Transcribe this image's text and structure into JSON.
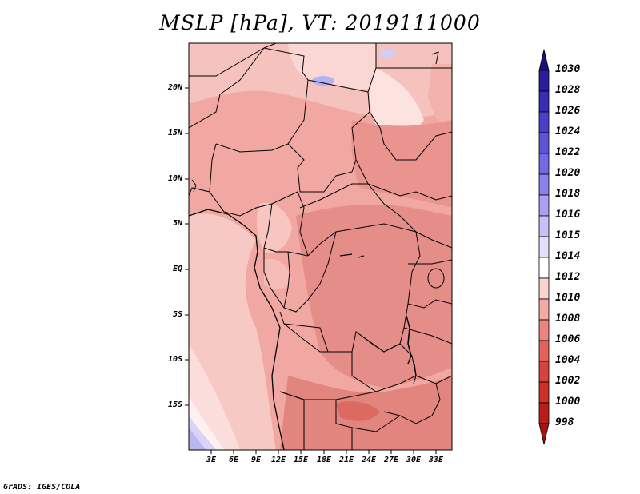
{
  "title": "MSLP [hPa], VT: 2019111000",
  "credit": "GrADS: IGES/COLA",
  "y_axis_labels": [
    "20N",
    "15N",
    "10N",
    "5N",
    "EQ",
    "5S",
    "10S",
    "15S"
  ],
  "x_axis_labels": [
    "3E",
    "6E",
    "9E",
    "12E",
    "15E",
    "18E",
    "21E",
    "24E",
    "27E",
    "30E",
    "33E"
  ],
  "colorbar": {
    "levels": [
      "1030",
      "1028",
      "1026",
      "1024",
      "1022",
      "1020",
      "1018",
      "1016",
      "1015",
      "1014",
      "1012",
      "1010",
      "1008",
      "1006",
      "1004",
      "1002",
      "1000",
      "998"
    ],
    "colors": [
      "#1a0f7a",
      "#2a1c9c",
      "#3a2cb4",
      "#4b3ec9",
      "#5e53d8",
      "#7468e3",
      "#8c81eb",
      "#a9a0f1",
      "#c6c0f6",
      "#e2defb",
      "#ffffff",
      "#fbd4d0",
      "#f4aaa4",
      "#ec8580",
      "#e2615c",
      "#d8433d",
      "#cc2e28",
      "#bb1d18",
      "#a8120e"
    ]
  },
  "colors": {
    "land_base": "#f0a09b",
    "border": "#000000"
  }
}
